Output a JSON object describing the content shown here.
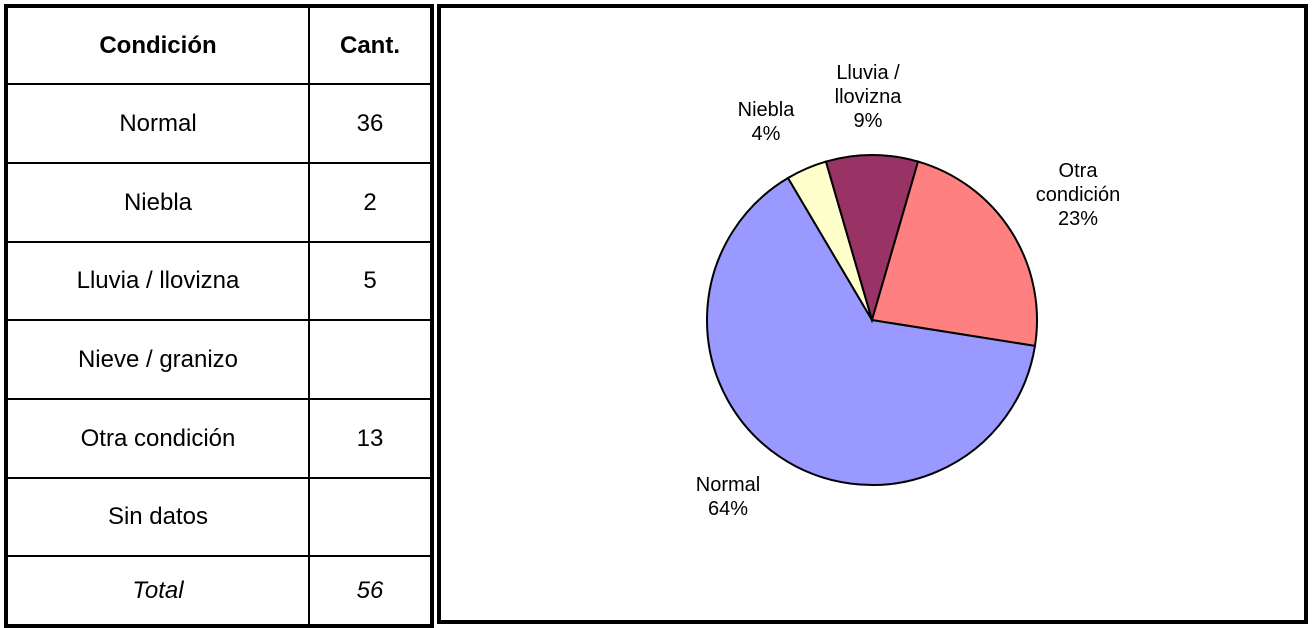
{
  "table": {
    "header": [
      "Condición",
      "Cant."
    ],
    "rows": [
      [
        "Normal",
        36
      ],
      [
        "Niebla",
        2
      ],
      [
        "Lluvia / llovizna",
        5
      ],
      [
        "Nieve / granizo",
        null
      ],
      [
        "Otra condición",
        13
      ],
      [
        "Sin datos",
        null
      ]
    ],
    "total": [
      "Total",
      56
    ]
  },
  "chart_data": {
    "type": "pie",
    "categories": [
      "Normal",
      "Niebla",
      "Lluvia / llovizna",
      "Otra condición"
    ],
    "values": [
      64,
      4,
      9,
      23
    ],
    "value_labels": [
      "64%",
      "4%",
      "9%",
      "23%"
    ],
    "colors": [
      "#9999ff",
      "#ffffcc",
      "#993366",
      "#ff8080"
    ]
  }
}
